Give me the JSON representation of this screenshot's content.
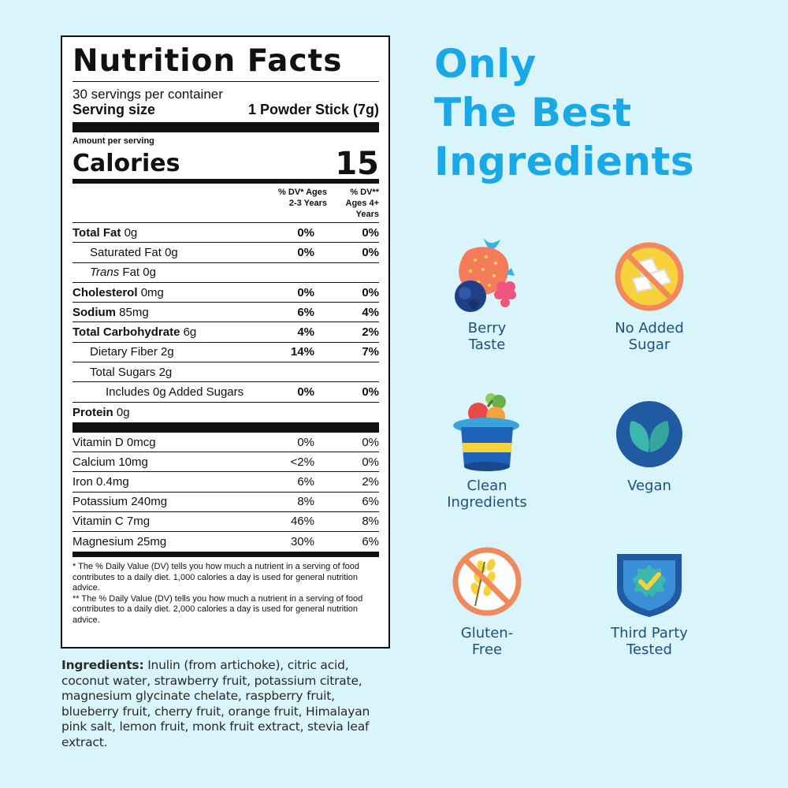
{
  "label": {
    "title": "Nutrition Facts",
    "servings": "30 servings per container",
    "serving_size_label": "Serving size",
    "serving_size_value": "1 Powder Stick (7g)",
    "amount_per_serving": "Amount per serving",
    "calories_label": "Calories",
    "calories_value": "15",
    "dv_header_1": "% DV* Ages 2-3 Years",
    "dv_header_2": "% DV** Ages 4+ Years",
    "nutrients": [
      {
        "name": "Total Fat",
        "amount": "0g",
        "dv1": "0%",
        "dv2": "0%"
      },
      {
        "name": "Saturated Fat",
        "amount": "0g",
        "dv1": "0%",
        "dv2": "0%"
      },
      {
        "name": "Trans",
        "amount": "Fat 0g",
        "dv1": "",
        "dv2": ""
      },
      {
        "name": "Cholesterol",
        "amount": "0mg",
        "dv1": "0%",
        "dv2": "0%"
      },
      {
        "name": "Sodium",
        "amount": "85mg",
        "dv1": "6%",
        "dv2": "4%"
      },
      {
        "name": "Total Carbohydrate",
        "amount": "6g",
        "dv1": "4%",
        "dv2": "2%"
      },
      {
        "name": "Dietary Fiber",
        "amount": "2g",
        "dv1": "14%",
        "dv2": "7%"
      },
      {
        "name": "Total Sugars",
        "amount": "2g",
        "dv1": "",
        "dv2": ""
      },
      {
        "name": "Includes 0g Added Sugars",
        "amount": "",
        "dv1": "0%",
        "dv2": "0%"
      },
      {
        "name": "Protein",
        "amount": "0g",
        "dv1": "",
        "dv2": ""
      }
    ],
    "vitamins": [
      {
        "name": "Vitamin D 0mcg",
        "dv1": "0%",
        "dv2": "0%"
      },
      {
        "name": "Calcium 10mg",
        "dv1": "<2%",
        "dv2": "0%"
      },
      {
        "name": "Iron 0.4mg",
        "dv1": "6%",
        "dv2": "2%"
      },
      {
        "name": "Potassium 240mg",
        "dv1": "8%",
        "dv2": "6%"
      },
      {
        "name": "Vitamin C 7mg",
        "dv1": "46%",
        "dv2": "8%"
      },
      {
        "name": "Magnesium 25mg",
        "dv1": "30%",
        "dv2": "6%"
      }
    ],
    "footnote_1": "* The % Daily Value (DV) tells you how much a nutrient in a serving of food contributes to a daily diet. 1,000 calories a day is used for general nutrition advice.",
    "footnote_2": "** The % Daily Value (DV) tells you how much a nutrient in a serving of food contributes to a daily diet. 2,000 calories a day is used for general nutrition advice."
  },
  "ingredients": {
    "heading": "Ingredients:",
    "text": "Inulin (from artichoke), citric acid, coconut water, strawberry fruit, potassium citrate, magnesium glycinate chelate, raspberry fruit, blueberry fruit, cherry fruit, orange fruit, Himalayan pink salt, lemon fruit, monk fruit extract, stevia leaf extract."
  },
  "headline": {
    "line1": "Only",
    "line2": "The Best",
    "line3": "Ingredients"
  },
  "features": [
    {
      "label_1": "Berry",
      "label_2": "Taste",
      "icon": "berries-icon"
    },
    {
      "label_1": "No Added",
      "label_2": "Sugar",
      "icon": "no-sugar-icon"
    },
    {
      "label_1": "Clean",
      "label_2": "Ingredients",
      "icon": "fruit-hat-icon"
    },
    {
      "label_1": "Vegan",
      "label_2": "",
      "icon": "leaf-icon"
    },
    {
      "label_1": "Gluten-",
      "label_2": "Free",
      "icon": "no-wheat-icon"
    },
    {
      "label_1": "Third Party",
      "label_2": "Tested",
      "icon": "checkmark-badge-icon"
    }
  ],
  "colors": {
    "background": "#d9f4fb",
    "headline": "#19a9e6",
    "feature_label": "#21507e"
  }
}
